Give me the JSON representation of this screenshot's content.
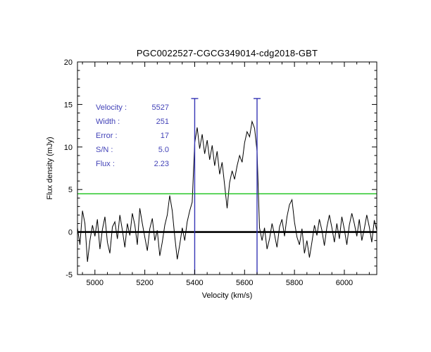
{
  "title": "PGC0022527-CGCG349014-cdg2018-GBT",
  "annotations": {
    "color": "#4343b8",
    "rows": [
      {
        "label": "Velocity :",
        "value": "5527"
      },
      {
        "label": "Width :",
        "value": "251"
      },
      {
        "label": "Error :",
        "value": "17"
      },
      {
        "label": "S/N :",
        "value": "5.0"
      },
      {
        "label": "Flux :",
        "value": "2.23"
      }
    ]
  },
  "chart_data": {
    "type": "line",
    "title": "PGC0022527-CGCG349014-cdg2018-GBT",
    "xlabel": "Velocity (km/s)",
    "ylabel": "Flux density (mJy)",
    "xlim": [
      4930,
      6130
    ],
    "ylim": [
      -5,
      20
    ],
    "xticks": [
      5000,
      5200,
      5400,
      5600,
      5800,
      6000
    ],
    "yticks": [
      -5,
      0,
      5,
      10,
      15,
      20
    ],
    "x_minor_step": 50,
    "y_minor_step": 1,
    "grid": false,
    "legend": "none",
    "line_color": "#000000",
    "baseline_y": 0,
    "threshold_line": {
      "y": 4.5,
      "color": "#00bb00"
    },
    "markers": {
      "x": [
        5400,
        5650
      ],
      "top": 15.7,
      "color": "#3535b5"
    },
    "x": [
      4930,
      4940,
      4950,
      4960,
      4970,
      4980,
      4990,
      5000,
      5010,
      5020,
      5030,
      5040,
      5050,
      5060,
      5070,
      5080,
      5090,
      5100,
      5110,
      5120,
      5130,
      5140,
      5150,
      5160,
      5170,
      5180,
      5190,
      5200,
      5210,
      5220,
      5230,
      5240,
      5250,
      5260,
      5270,
      5280,
      5290,
      5300,
      5310,
      5320,
      5330,
      5340,
      5350,
      5360,
      5370,
      5380,
      5390,
      5400,
      5410,
      5420,
      5430,
      5440,
      5450,
      5460,
      5470,
      5480,
      5490,
      5500,
      5510,
      5520,
      5530,
      5540,
      5550,
      5560,
      5570,
      5580,
      5590,
      5600,
      5610,
      5620,
      5630,
      5640,
      5650,
      5660,
      5670,
      5680,
      5690,
      5700,
      5710,
      5720,
      5730,
      5740,
      5750,
      5760,
      5770,
      5780,
      5790,
      5800,
      5810,
      5820,
      5830,
      5840,
      5850,
      5860,
      5870,
      5880,
      5890,
      5900,
      5910,
      5920,
      5930,
      5940,
      5950,
      5960,
      5970,
      5980,
      5990,
      6000,
      6010,
      6020,
      6030,
      6040,
      6050,
      6060,
      6070,
      6080,
      6090,
      6100,
      6110,
      6120,
      6130
    ],
    "flux": [
      0.5,
      -1.5,
      2.5,
      1.0,
      -3.5,
      -1.0,
      0.8,
      -0.5,
      1.5,
      -2.0,
      0.3,
      1.8,
      -1.2,
      -2.5,
      0.6,
      1.2,
      -0.8,
      2.0,
      0.2,
      -1.8,
      1.0,
      -0.4,
      2.2,
      0.8,
      -1.5,
      2.8,
      1.0,
      -0.6,
      -2.2,
      0.4,
      1.6,
      -1.0,
      0.2,
      -2.8,
      -1.2,
      0.8,
      2.0,
      4.3,
      2.5,
      -0.5,
      -3.2,
      -1.5,
      0.5,
      -1.0,
      1.2,
      2.5,
      3.5,
      10.5,
      12.3,
      9.8,
      11.5,
      9.2,
      10.8,
      8.5,
      10.2,
      7.8,
      9.5,
      6.8,
      8.2,
      5.5,
      2.8,
      5.8,
      7.2,
      6.2,
      7.8,
      9.0,
      8.2,
      10.5,
      11.8,
      11.2,
      13.0,
      12.2,
      9.5,
      0.5,
      -1.0,
      0.5,
      -2.0,
      -0.8,
      1.0,
      -0.3,
      -1.8,
      0.6,
      1.5,
      -0.5,
      1.8,
      3.2,
      3.8,
      1.2,
      -0.6,
      -1.5,
      0.4,
      -2.5,
      -1.0,
      -3.0,
      -1.2,
      0.8,
      -0.4,
      1.5,
      0.2,
      -1.6,
      0.6,
      2.0,
      0.5,
      -1.2,
      1.0,
      -0.8,
      1.8,
      0.3,
      -1.5,
      0.8,
      2.2,
      1.0,
      -0.5,
      1.5,
      -1.0,
      0.4,
      2.0,
      0.6,
      -1.2,
      1.4,
      0.2
    ]
  }
}
